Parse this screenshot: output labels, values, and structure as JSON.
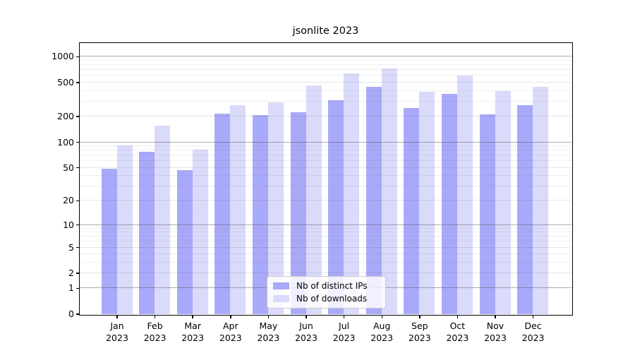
{
  "title": "jsonlite 2023",
  "chart_data": {
    "type": "bar",
    "title": "jsonlite 2023",
    "categories": [
      "Jan",
      "Feb",
      "Mar",
      "Apr",
      "May",
      "Jun",
      "Jul",
      "Aug",
      "Sep",
      "Oct",
      "Nov",
      "Dec"
    ],
    "year_label": "2023",
    "series": [
      {
        "name": "Nb of distinct IPs",
        "color": "#a9a9f9",
        "values": [
          48,
          76,
          46,
          214,
          206,
          223,
          308,
          442,
          250,
          364,
          210,
          269
        ]
      },
      {
        "name": "Nb of downloads",
        "color": "#dadafb",
        "values": [
          91,
          155,
          81,
          270,
          291,
          459,
          634,
          724,
          388,
          599,
          394,
          440
        ]
      }
    ],
    "xlabel": "",
    "ylabel": "",
    "yscale": "log1p",
    "ylim": [
      0,
      1400
    ],
    "yticks": [
      0,
      1,
      2,
      5,
      10,
      20,
      50,
      100,
      200,
      500,
      1000
    ],
    "grid": true,
    "legend_position": "lower center"
  }
}
